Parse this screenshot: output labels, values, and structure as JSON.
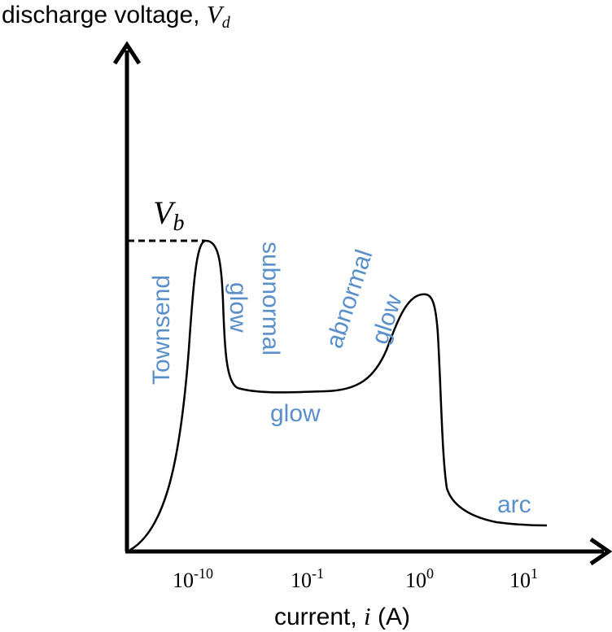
{
  "y_axis": {
    "label_text": "discharge voltage, ",
    "label_var": "V",
    "label_sub": "d"
  },
  "x_axis": {
    "label_text_before": "current, ",
    "label_var": "i",
    "label_text_after": " (A)"
  },
  "breakdown": {
    "var": "V",
    "sub": "b"
  },
  "ticks": [
    {
      "base": "10",
      "exp": "-10"
    },
    {
      "base": "10",
      "exp": "-1"
    },
    {
      "base": "10",
      "exp": "0"
    },
    {
      "base": "10",
      "exp": "1"
    }
  ],
  "regions": {
    "townsend": "Townsend",
    "subnormal_glow_1": "glow",
    "subnormal_glow_2": "subnormal",
    "normal_glow": "glow",
    "abnormal_glow_1": "abnormal",
    "abnormal_glow_2": "glow",
    "arc": "arc"
  },
  "colors": {
    "region_label": "#5b8fc9",
    "curve": "#000000",
    "axis": "#000000"
  }
}
